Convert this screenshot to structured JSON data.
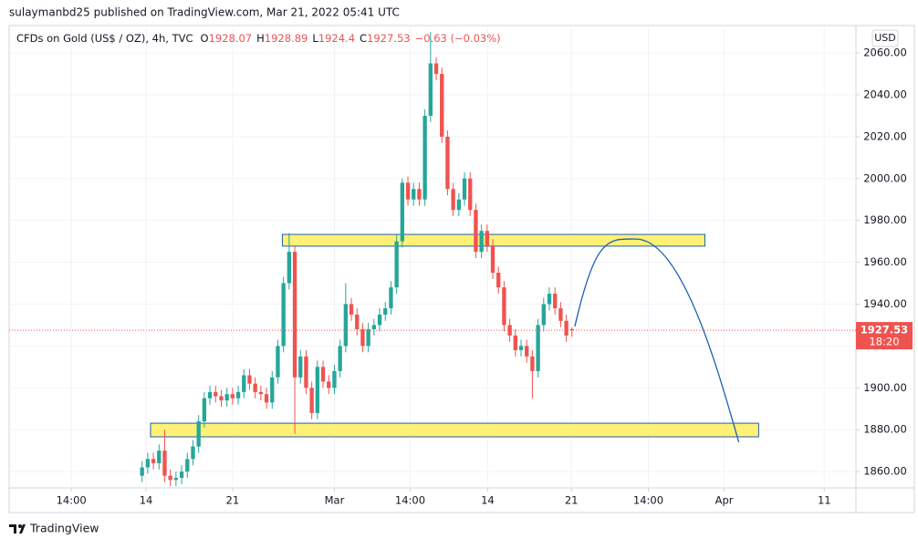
{
  "published": "sulaymanbd25 published on TradingView.com, Mar 21, 2022 05:41 UTC",
  "footer": "TradingView",
  "chart_data": {
    "type": "candlestick",
    "symbol": "CFDs on Gold (US$ / OZ), 4h, TVC",
    "ohlc_labels": [
      "O",
      "H",
      "L",
      "C"
    ],
    "change": "−0.63 (−0.03%)",
    "currency": "USD",
    "countdown": "18:20",
    "up_color": "#26a69a",
    "down_color": "#ef5350",
    "grid": true,
    "x": [
      0,
      1,
      2,
      3,
      4,
      5,
      6,
      7,
      8,
      9,
      10,
      11,
      12,
      13,
      14,
      15,
      16,
      17,
      18,
      19,
      20,
      21,
      22,
      23,
      24,
      25,
      26,
      27,
      28,
      29,
      30,
      31,
      32,
      33,
      34,
      35,
      36,
      37,
      38,
      39,
      40,
      41,
      42,
      43,
      44,
      45,
      46,
      47,
      48,
      49,
      50,
      51,
      52,
      53,
      54,
      55,
      56,
      57,
      58,
      59,
      60,
      61,
      62,
      63,
      64,
      65,
      66,
      67,
      68,
      69,
      70,
      71,
      72,
      73,
      74,
      75,
      76
    ],
    "open": [
      1858,
      1862,
      1866,
      1864,
      1870,
      1858,
      1856,
      1857,
      1860,
      1866,
      1872,
      1884,
      1895,
      1898,
      1896,
      1894,
      1897,
      1895,
      1898,
      1906,
      1902,
      1898,
      1897,
      1893,
      1905,
      1920,
      1950,
      1965,
      1905,
      1915,
      1900,
      1888,
      1910,
      1903,
      1900,
      1908,
      1920,
      1940,
      1935,
      1928,
      1920,
      1928,
      1930,
      1935,
      1938,
      1948,
      1970,
      1998,
      1990,
      1995,
      1990,
      2030,
      2055,
      2050,
      2020,
      1995,
      1985,
      1990,
      2000,
      1985,
      1965,
      1975,
      1968,
      1955,
      1948,
      1930,
      1925,
      1918,
      1920,
      1915,
      1908,
      1930,
      1940,
      1945,
      1938,
      1932,
      1928.07
    ],
    "high": [
      1865,
      1869,
      1869,
      1873,
      1880,
      1861,
      1860,
      1863,
      1869,
      1875,
      1887,
      1898,
      1901,
      1901,
      1899,
      1900,
      1900,
      1901,
      1909,
      1909,
      1905,
      1901,
      1900,
      1908,
      1923,
      1953,
      1974,
      1968,
      1918,
      1918,
      1903,
      1913,
      1913,
      1906,
      1911,
      1923,
      1950,
      1943,
      1938,
      1931,
      1931,
      1933,
      1938,
      1941,
      1951,
      1973,
      2000,
      2001,
      1998,
      1998,
      2033,
      2070,
      2058,
      2053,
      2023,
      1998,
      1993,
      2003,
      2003,
      1988,
      1978,
      1978,
      1971,
      1958,
      1951,
      1933,
      1928,
      1923,
      1923,
      1918,
      1933,
      1943,
      1948,
      1948,
      1941,
      1935,
      1928.89
    ],
    "low": [
      1855,
      1859,
      1861,
      1861,
      1855,
      1853,
      1853,
      1854,
      1857,
      1863,
      1869,
      1881,
      1892,
      1893,
      1891,
      1891,
      1892,
      1892,
      1895,
      1899,
      1895,
      1894,
      1890,
      1890,
      1902,
      1917,
      1947,
      1878,
      1902,
      1897,
      1885,
      1885,
      1900,
      1897,
      1897,
      1905,
      1917,
      1932,
      1925,
      1917,
      1917,
      1925,
      1927,
      1932,
      1935,
      1945,
      1967,
      1987,
      1987,
      1987,
      1987,
      2027,
      2047,
      2017,
      1992,
      1982,
      1982,
      1987,
      1982,
      1962,
      1962,
      1965,
      1952,
      1945,
      1927,
      1922,
      1915,
      1915,
      1912,
      1895,
      1905,
      1927,
      1937,
      1935,
      1929,
      1922,
      1924.4
    ],
    "close": [
      1862,
      1866,
      1864,
      1870,
      1858,
      1856,
      1857,
      1860,
      1866,
      1872,
      1884,
      1895,
      1898,
      1896,
      1894,
      1897,
      1895,
      1898,
      1906,
      1902,
      1898,
      1897,
      1893,
      1905,
      1920,
      1950,
      1965,
      1905,
      1915,
      1900,
      1888,
      1910,
      1903,
      1900,
      1908,
      1920,
      1940,
      1935,
      1928,
      1920,
      1928,
      1930,
      1935,
      1938,
      1948,
      1970,
      1998,
      1990,
      1995,
      1990,
      2030,
      2055,
      2050,
      2020,
      1995,
      1985,
      1990,
      2000,
      1985,
      1965,
      1975,
      1968,
      1955,
      1948,
      1930,
      1925,
      1918,
      1920,
      1915,
      1908,
      1930,
      1940,
      1945,
      1938,
      1932,
      1925,
      1927.53
    ],
    "xlim": [
      -23.5,
      126.2
    ],
    "xticks": [
      {
        "value": -12.5,
        "label": "14:00"
      },
      {
        "value": 0.7,
        "label": "14"
      },
      {
        "value": 16,
        "label": "21"
      },
      {
        "value": 34,
        "label": "Mar"
      },
      {
        "value": 47.4,
        "label": "14:00"
      },
      {
        "value": 61.1,
        "label": "14"
      },
      {
        "value": 75.9,
        "label": "21"
      },
      {
        "value": 89.5,
        "label": "14:00"
      },
      {
        "value": 102.9,
        "label": "Apr"
      },
      {
        "value": 120.6,
        "label": "11"
      }
    ],
    "ylim": [
      1852.2,
      2073.1
    ],
    "yticks": [
      {
        "value": 1860,
        "label": "1860.00"
      },
      {
        "value": 1880,
        "label": "1880.00"
      },
      {
        "value": 1900,
        "label": "1900.00"
      },
      {
        "value": 1920,
        "label": "1920.00"
      },
      {
        "value": 1940,
        "label": "1940.00"
      },
      {
        "value": 1960,
        "label": "1960.00"
      },
      {
        "value": 1980,
        "label": "1980.00"
      },
      {
        "value": 2000,
        "label": "2000.00"
      },
      {
        "value": 2020,
        "label": "2020.00"
      },
      {
        "value": 2040,
        "label": "2040.00"
      },
      {
        "value": 2060,
        "label": "2060.00"
      }
    ],
    "zones": [
      {
        "x": [
          24.8,
          99.5
        ],
        "y": [
          1967.7,
          1973.3
        ],
        "color": "#fff176"
      },
      {
        "x": [
          1.5,
          109
        ],
        "y": [
          1876.6,
          1883.1
        ],
        "color": "#fff176"
      }
    ],
    "curve": {
      "x": [
        76.5,
        87.3,
        105.5
      ],
      "y": [
        1929.3,
        1971.1,
        1874
      ],
      "color": "#1e5fb4"
    }
  }
}
